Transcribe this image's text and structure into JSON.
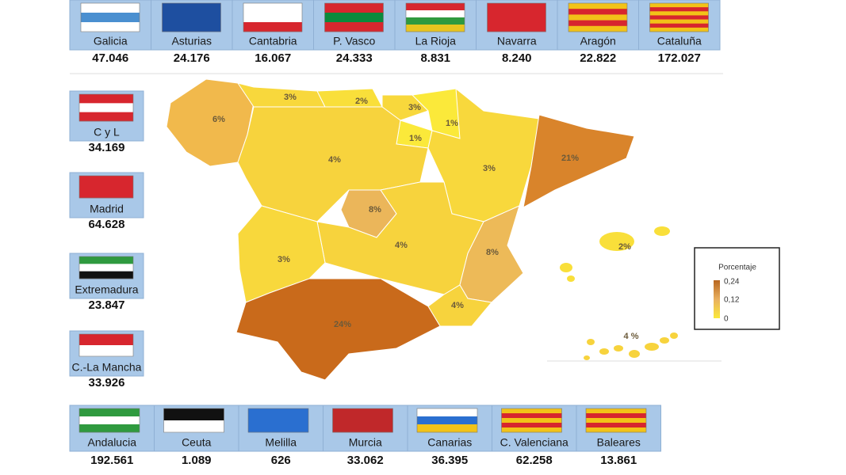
{
  "top_regions": [
    {
      "name": "Galicia",
      "count": "47.046"
    },
    {
      "name": "Asturias",
      "count": "24.176"
    },
    {
      "name": "Cantabria",
      "count": "16.067"
    },
    {
      "name": "P. Vasco",
      "count": "24.333"
    },
    {
      "name": "La Rioja",
      "count": "8.831"
    },
    {
      "name": "Navarra",
      "count": "8.240"
    },
    {
      "name": "Aragón",
      "count": "22.822"
    },
    {
      "name": "Cataluña",
      "count": "172.027"
    }
  ],
  "left_regions": [
    {
      "name": "C y L",
      "count": "34.169"
    },
    {
      "name": "Madrid",
      "count": "64.628"
    },
    {
      "name": "Extremadura",
      "count": "23.847"
    },
    {
      "name": "C.-La Mancha",
      "count": "33.926"
    }
  ],
  "bottom_regions": [
    {
      "name": "Andalucia",
      "count": "192.561"
    },
    {
      "name": "Ceuta",
      "count": "1.089"
    },
    {
      "name": "Melilla",
      "count": "626"
    },
    {
      "name": "Murcia",
      "count": "33.062"
    },
    {
      "name": "Canarias",
      "count": "36.395"
    },
    {
      "name": "C. Valenciana",
      "count": "62.258"
    },
    {
      "name": "Baleares",
      "count": "13.861"
    }
  ],
  "map": {
    "regions": [
      {
        "label": "6%",
        "color": "#f1b94c"
      },
      {
        "label": "3%",
        "color": "#f8d83c"
      },
      {
        "label": "2%",
        "color": "#f9df3a"
      },
      {
        "label": "3%",
        "color": "#f8d83c"
      },
      {
        "label": "1%",
        "color": "#fbe93a"
      },
      {
        "label": "1%",
        "color": "#fbe93a"
      },
      {
        "label": "4%",
        "color": "#f7d33d"
      },
      {
        "label": "3%",
        "color": "#f8d83c"
      },
      {
        "label": "21%",
        "color": "#d9842b"
      },
      {
        "label": "8%",
        "color": "#ebb65a"
      },
      {
        "label": "4%",
        "color": "#f7d33d"
      },
      {
        "label": "3%",
        "color": "#f8d83c"
      },
      {
        "label": "8%",
        "color": "#edba58"
      },
      {
        "label": "4%",
        "color": "#f7d33d"
      },
      {
        "label": "24%",
        "color": "#c96a1b"
      },
      {
        "label": "2%",
        "color": "#f9df3a"
      },
      {
        "label": "4 %",
        "color": "#f7d33d"
      }
    ]
  },
  "legend": {
    "title": "Porcentaje",
    "ticks": [
      "0,24",
      "0,12",
      "0"
    ]
  }
}
